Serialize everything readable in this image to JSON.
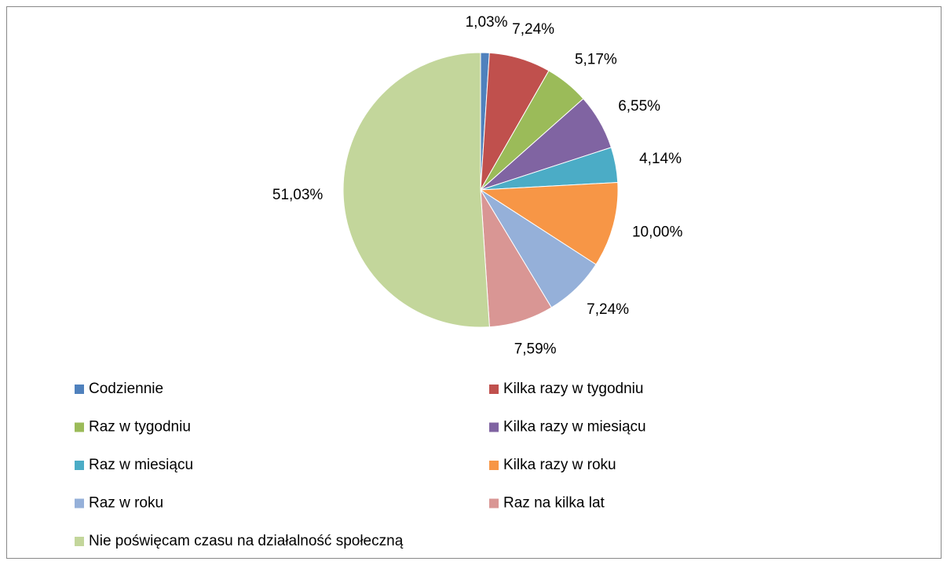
{
  "chart_data": {
    "type": "pie",
    "categories": [
      "Codziennie",
      "Kilka razy w tygodniu",
      "Raz w tygodniu",
      "Kilka razy w miesiącu",
      "Raz w miesiącu",
      "Kilka razy w roku",
      "Raz w roku",
      "Raz na kilka lat",
      "Nie poświęcam czasu na działalność społeczną"
    ],
    "values": [
      1.03,
      7.24,
      5.17,
      6.55,
      4.14,
      10.0,
      7.24,
      7.59,
      51.03
    ],
    "value_labels": [
      "1,03%",
      "7,24%",
      "5,17%",
      "6,55%",
      "4,14%",
      "10,00%",
      "7,24%",
      "7,59%",
      "51,03%"
    ],
    "colors": [
      "#4f81bd",
      "#c0504d",
      "#9bbb59",
      "#8064a2",
      "#4bacc6",
      "#f79646",
      "#95b0d9",
      "#d99694",
      "#c3d69b"
    ],
    "legend": "bottom"
  }
}
